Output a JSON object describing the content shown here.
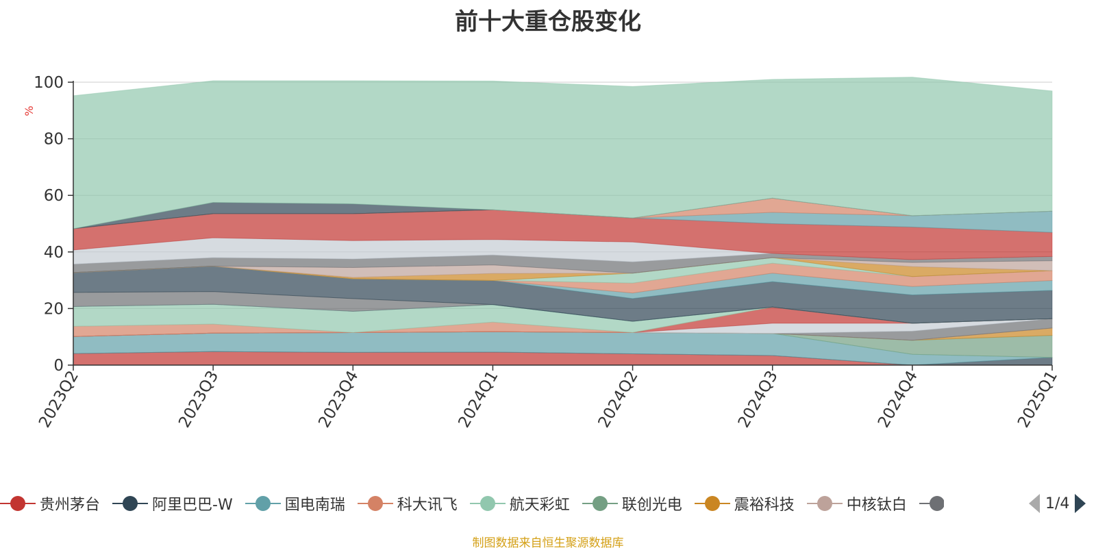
{
  "title": "前十大重仓股变化",
  "source_note": "制图数据来自恒生聚源数据库",
  "pager": {
    "text": "1/4"
  },
  "chart_data": {
    "type": "area",
    "stacked": true,
    "title": "前十大重仓股变化",
    "xlabel": "",
    "ylabel": "%",
    "ylim": [
      0,
      100
    ],
    "yticks": [
      0,
      20,
      40,
      60,
      80,
      100
    ],
    "grid": true,
    "legend_position": "bottom",
    "categories": [
      "2023Q2",
      "2023Q3",
      "2023Q4",
      "2024Q1",
      "2024Q2",
      "2024Q3",
      "2024Q4",
      "2025Q1"
    ],
    "layers": [
      {
        "color": "#c23531",
        "values": [
          4.1,
          4.8,
          4.5,
          4.6,
          4.0,
          3.4,
          0.0,
          0.0
        ]
      },
      {
        "color": "#2f4554",
        "values": [
          0.0,
          0.0,
          0.0,
          0.0,
          0.0,
          0.0,
          0.0,
          2.7
        ]
      },
      {
        "color": "#61a0a8",
        "values": [
          6.0,
          6.5,
          7.0,
          7.2,
          7.5,
          7.8,
          3.8,
          0.0
        ]
      },
      {
        "color": "#91c7ae",
        "values": [
          0.0,
          0.0,
          0.0,
          0.0,
          0.0,
          0.0,
          0.0,
          0.0
        ]
      },
      {
        "color": "#749f83",
        "values": [
          0.0,
          0.0,
          0.0,
          0.0,
          0.0,
          0.0,
          5.0,
          7.8
        ]
      },
      {
        "color": "#ca8622",
        "values": [
          0.0,
          0.0,
          0.0,
          0.0,
          0.0,
          0.0,
          0.0,
          2.6
        ]
      },
      {
        "color": "#bda29a",
        "values": [
          0.0,
          0.0,
          0.0,
          0.0,
          0.0,
          0.0,
          0.0,
          0.0
        ]
      },
      {
        "color": "#6e7074",
        "values": [
          0.0,
          0.0,
          0.0,
          0.0,
          0.0,
          0.0,
          3.2,
          3.3
        ]
      },
      {
        "color": "#c4ccd3",
        "values": [
          0.0,
          0.0,
          0.0,
          0.0,
          0.0,
          3.6,
          2.8,
          0.0
        ]
      },
      {
        "color": "#c23531",
        "values": [
          0.0,
          0.0,
          0.0,
          0.0,
          0.0,
          5.7,
          0.0,
          0.0
        ]
      },
      {
        "color": "#d48265",
        "values": [
          3.6,
          3.2,
          0.0,
          3.4,
          0.0,
          0.0,
          0.0,
          0.0
        ]
      },
      {
        "color": "#91c7ae",
        "values": [
          7.0,
          7.0,
          7.5,
          6.2,
          4.0,
          0.0,
          0.0,
          0.0
        ]
      },
      {
        "color": "#61a0a8",
        "values": [
          0.0,
          0.0,
          0.0,
          0.0,
          0.0,
          0.0,
          0.0,
          0.0
        ]
      },
      {
        "color": "#6e7074",
        "values": [
          5.0,
          4.5,
          4.5,
          0.0,
          0.0,
          0.0,
          0.0,
          0.0
        ]
      },
      {
        "color": "#2f4554",
        "values": [
          7.0,
          9.0,
          7.0,
          8.5,
          8.0,
          9.0,
          10.0,
          10.0
        ]
      },
      {
        "color": "#61a0a8",
        "values": [
          0.0,
          0.0,
          0.0,
          0.0,
          2.0,
          3.0,
          3.0,
          3.5
        ]
      },
      {
        "color": "#d48265",
        "values": [
          0.0,
          0.0,
          0.0,
          0.0,
          3.5,
          3.5,
          3.5,
          3.5
        ]
      },
      {
        "color": "#91c7ae",
        "values": [
          0.0,
          0.0,
          0.0,
          0.0,
          3.5,
          2.0,
          0.0,
          0.0
        ]
      },
      {
        "color": "#ca8622",
        "values": [
          0.0,
          0.0,
          0.5,
          2.5,
          0.0,
          0.0,
          3.5,
          0.0
        ]
      },
      {
        "color": "#bda29a",
        "values": [
          0.0,
          0.0,
          3.5,
          3.0,
          0.0,
          0.0,
          1.5,
          3.5
        ]
      },
      {
        "color": "#6e7074",
        "values": [
          3.0,
          3.0,
          3.0,
          3.5,
          4.0,
          1.5,
          1.0,
          1.5
        ]
      },
      {
        "color": "#c4ccd3",
        "values": [
          5.0,
          7.0,
          6.5,
          5.5,
          7.0,
          0.0,
          0.0,
          0.0
        ]
      },
      {
        "color": "#c23531",
        "values": [
          7.5,
          8.5,
          9.5,
          10.5,
          8.5,
          10.5,
          11.5,
          8.5
        ]
      },
      {
        "color": "#61a0a8",
        "values": [
          0.0,
          0.0,
          0.0,
          0.0,
          0.0,
          4.0,
          4.0,
          7.5
        ]
      },
      {
        "color": "#d48265",
        "values": [
          0.0,
          0.0,
          0.0,
          0.0,
          0.0,
          5.0,
          0.0,
          0.0
        ]
      },
      {
        "color": "#2f4554",
        "values": [
          0.0,
          4.0,
          3.5,
          0.0,
          0.0,
          0.0,
          0.0,
          0.0
        ]
      },
      {
        "color": "#91c7ae",
        "values": [
          47.0,
          43.0,
          43.5,
          45.5,
          46.5,
          42.0,
          49.0,
          42.5
        ]
      }
    ],
    "legend": [
      {
        "label": "贵州茅台",
        "color": "#c23531"
      },
      {
        "label": "阿里巴巴-W",
        "color": "#2f4554"
      },
      {
        "label": "国电南瑞",
        "color": "#61a0a8"
      },
      {
        "label": "科大讯飞",
        "color": "#d48265"
      },
      {
        "label": "航天彩虹",
        "color": "#91c7ae"
      },
      {
        "label": "联创光电",
        "color": "#749f83"
      },
      {
        "label": "震裕科技",
        "color": "#ca8622"
      },
      {
        "label": "中核钛白",
        "color": "#bda29a"
      }
    ],
    "legend_partial_color": "#6e7074",
    "colors": {
      "axis": "#333333",
      "grid": "#cccccc",
      "ylabel": "#e53935",
      "source": "#d4a017",
      "pager_inactive": "#aaaaaa",
      "pager_active": "#2f4554"
    }
  }
}
